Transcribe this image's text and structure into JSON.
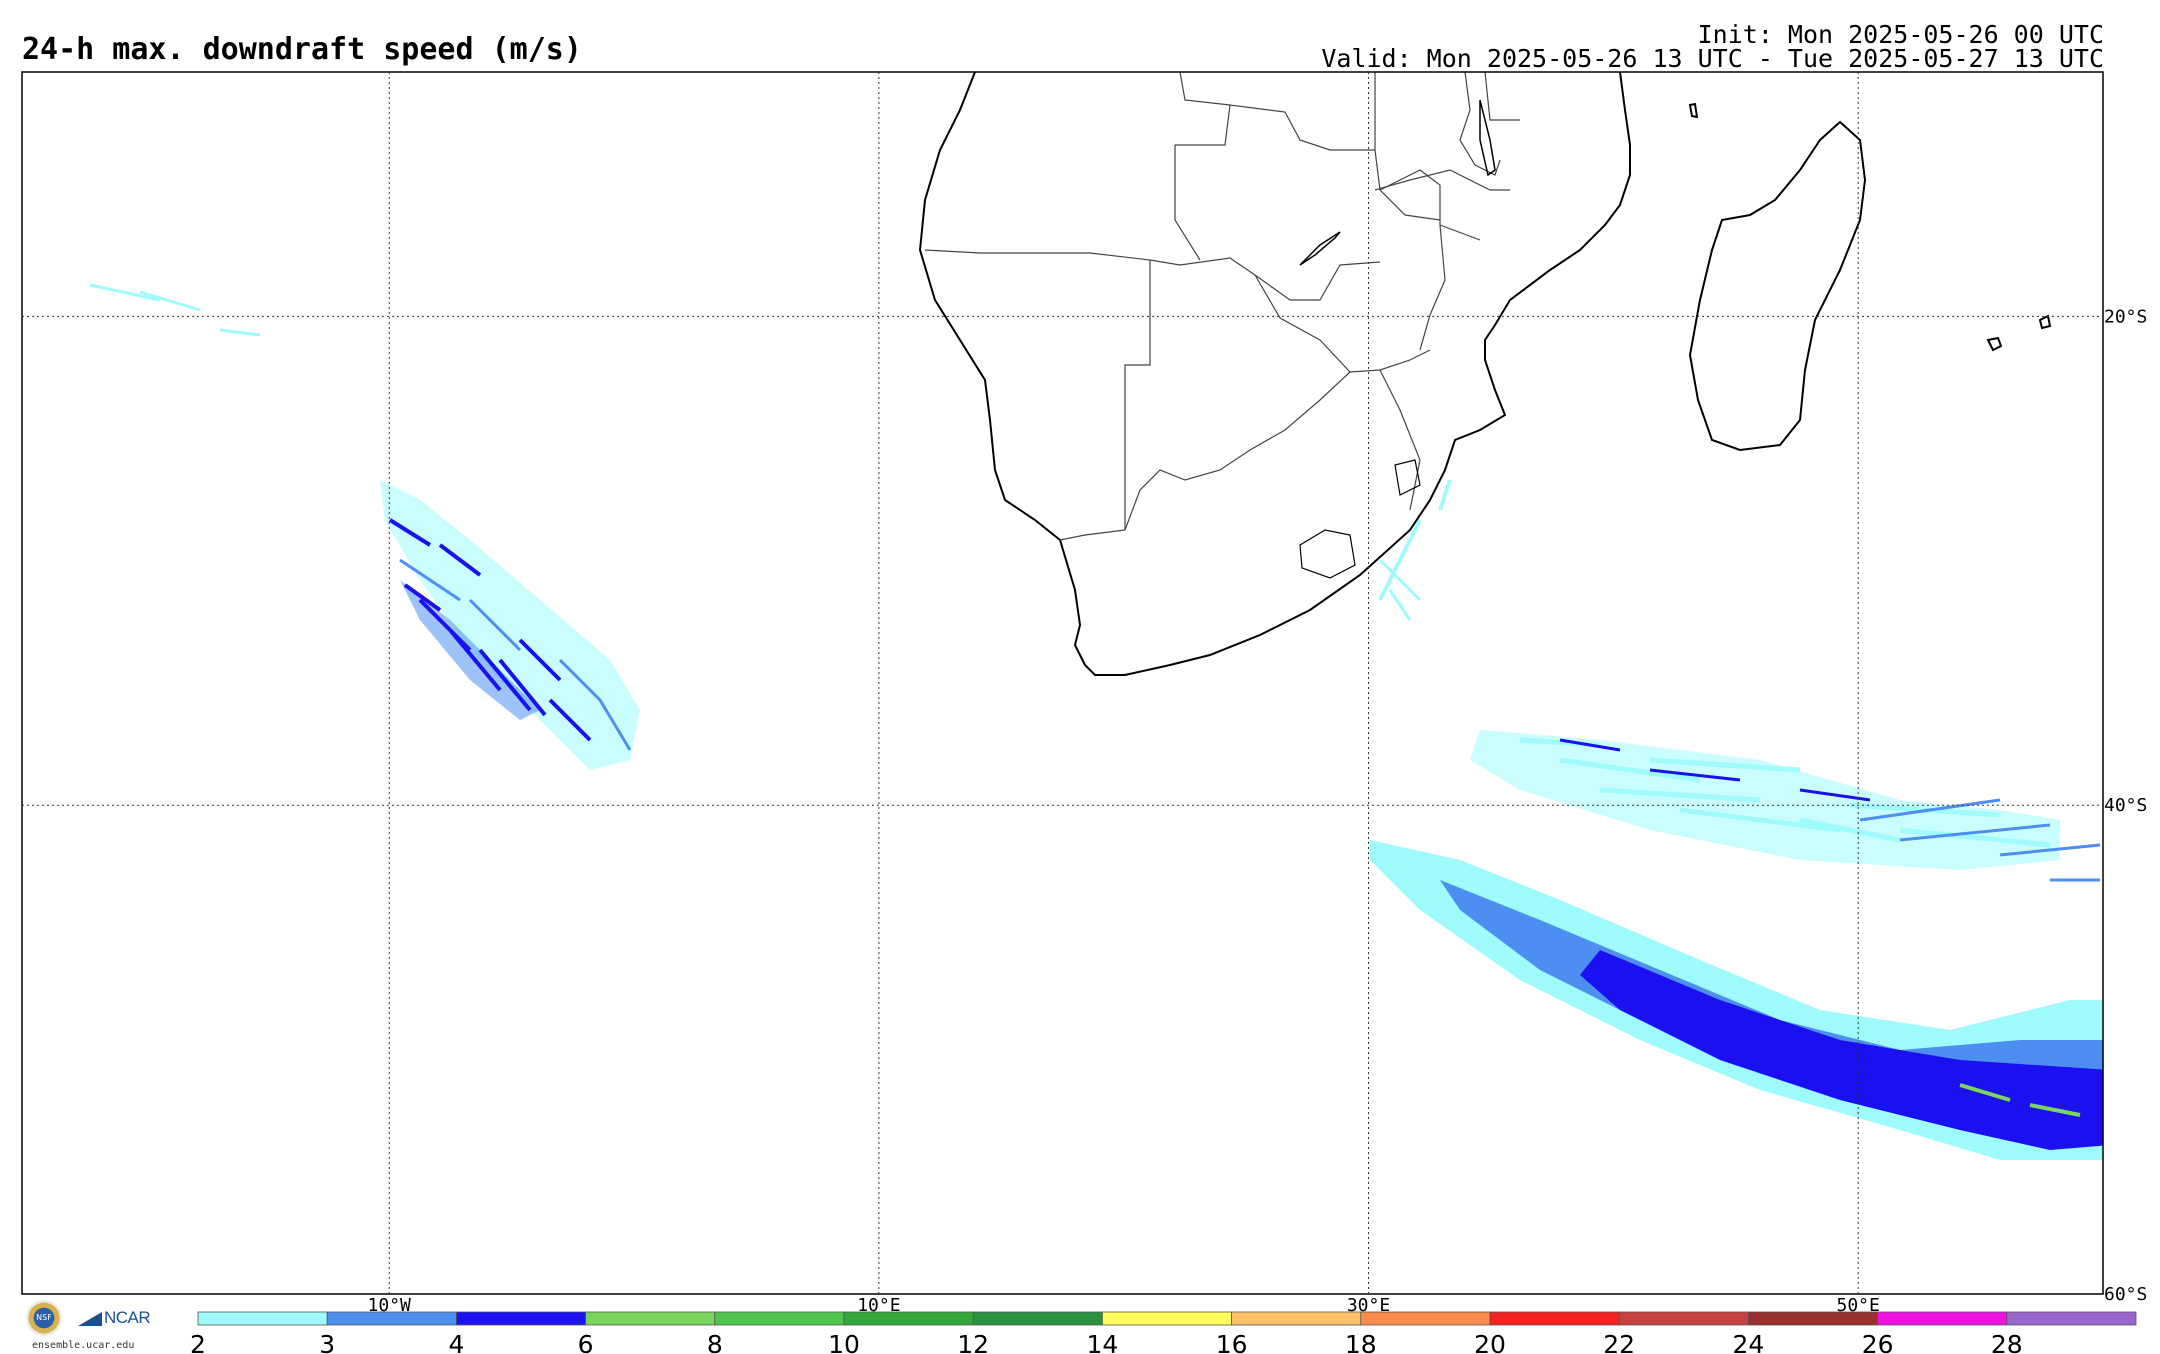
{
  "title": "24-h max. downdraft speed (m/s)",
  "init": "Init: Mon 2025-05-26 00 UTC",
  "valid": "Valid: Mon 2025-05-26 13 UTC - Tue 2025-05-27 13 UTC",
  "site": "ensemble.ucar.edu",
  "logos": {
    "nsf": "NSF",
    "ncar": "NCAR"
  },
  "map": {
    "lon_range": [
      -25,
      60
    ],
    "lat_range": [
      -60,
      -10
    ],
    "lon_labels": [
      {
        "lon": -10,
        "text": "10°W"
      },
      {
        "lon": 10,
        "text": "10°E"
      },
      {
        "lon": 30,
        "text": "30°E"
      },
      {
        "lon": 50,
        "text": "50°E"
      }
    ],
    "lat_labels": [
      {
        "lat": -20,
        "text": "20°S"
      },
      {
        "lat": -40,
        "text": "40°S"
      },
      {
        "lat": -60,
        "text": "60°S"
      }
    ]
  },
  "colorbar": {
    "levels": [
      "2",
      "3",
      "4",
      "6",
      "8",
      "10",
      "12",
      "14",
      "16",
      "18",
      "20",
      "22",
      "24",
      "26",
      "28"
    ],
    "colors": [
      "#9ffbfb",
      "#4d8ff0",
      "#1a10f0",
      "#7ad65a",
      "#4fc44a",
      "#34a83a",
      "#2a9340",
      "#ffff5a",
      "#ffc266",
      "#ff8c4a",
      "#f52020",
      "#c84040",
      "#9a3030",
      "#f010e0",
      "#9966cc"
    ]
  }
}
